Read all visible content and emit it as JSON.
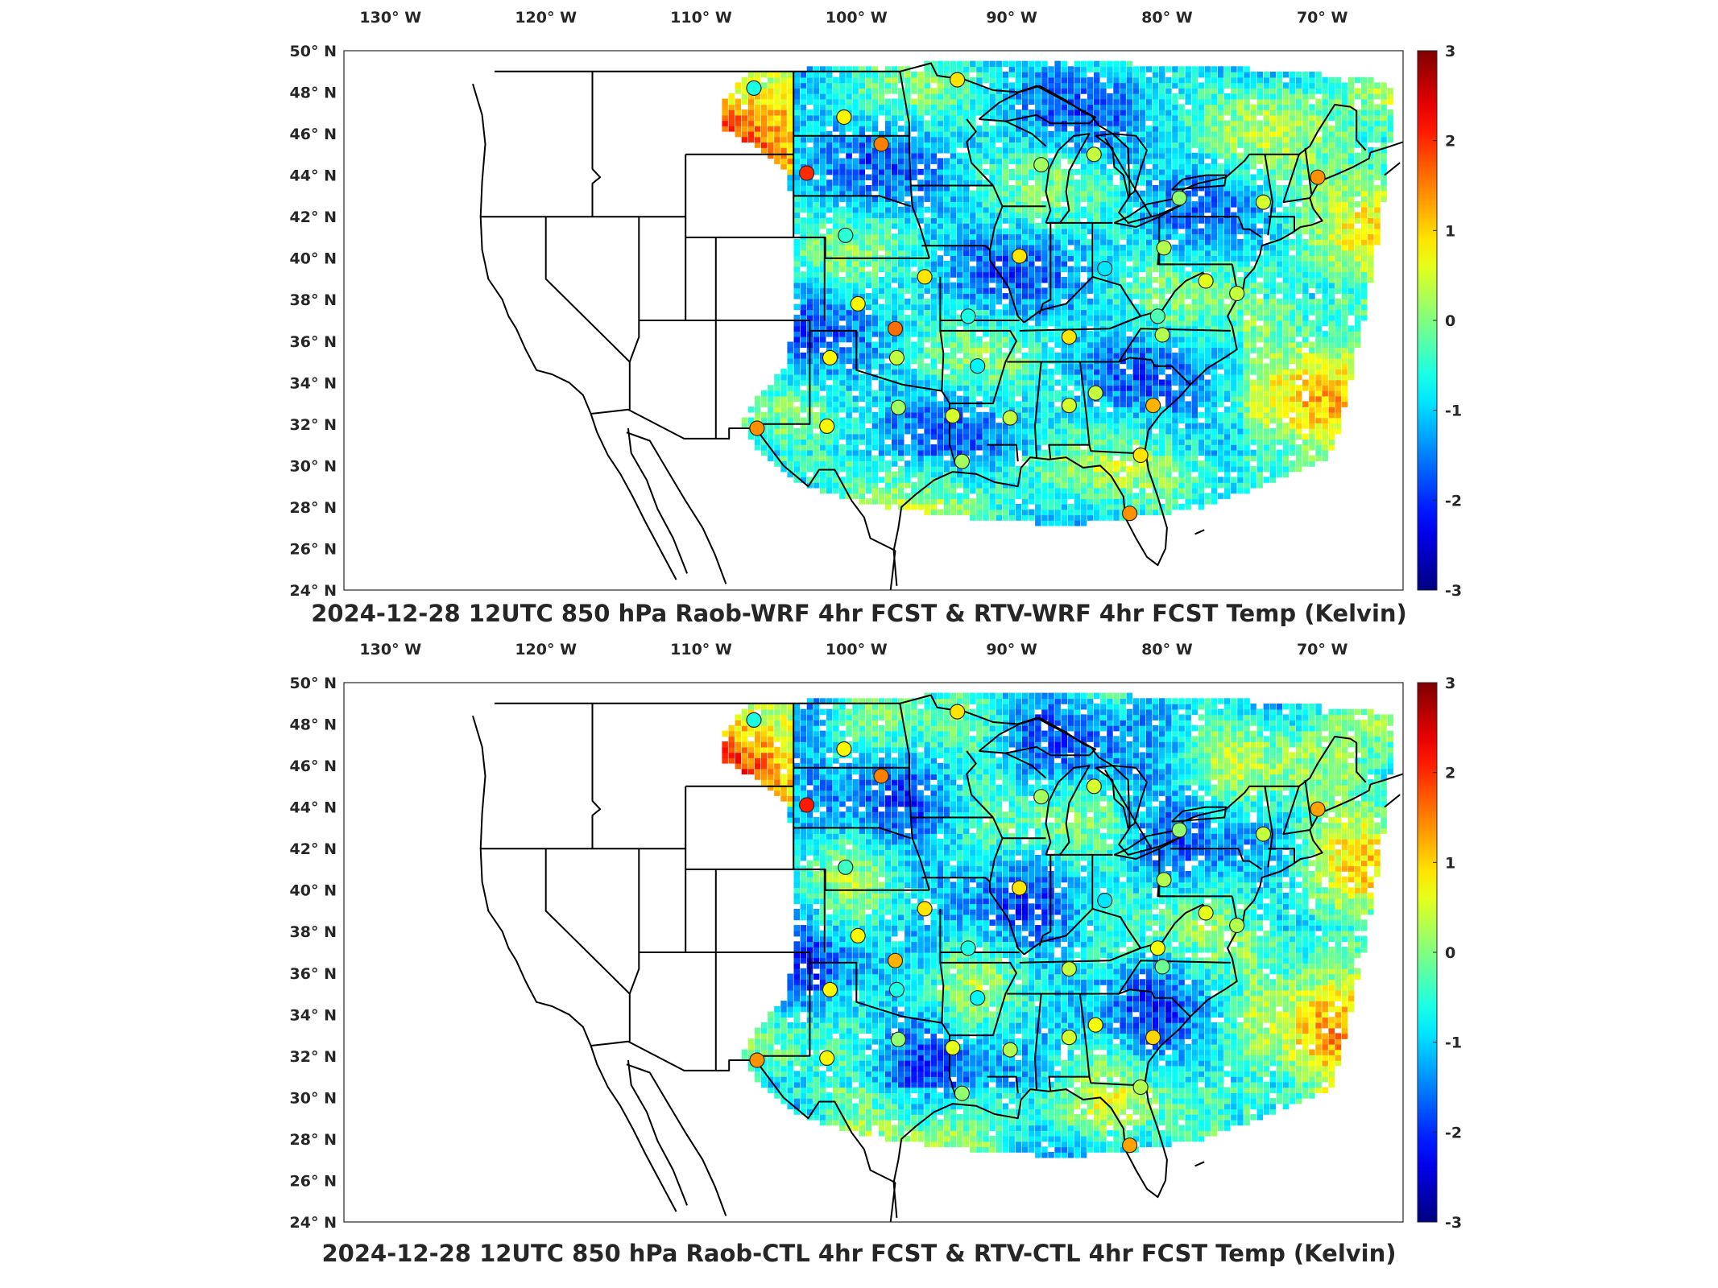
{
  "lon_labels": [
    "130° W",
    "120° W",
    "110° W",
    "100° W",
    "90° W",
    "80° W",
    "70° W"
  ],
  "lat_labels": [
    "50° N",
    "48° N",
    "46° N",
    "44° N",
    "42° N",
    "40° N",
    "38° N",
    "36° N",
    "34° N",
    "32° N",
    "30° N",
    "28° N",
    "26° N",
    "24° N"
  ],
  "colorbar": {
    "ticks": [
      "3",
      "2",
      "1",
      "0",
      "-1",
      "-2",
      "-3"
    ],
    "range": [
      -3,
      3
    ],
    "colormap": "jet"
  },
  "panels": [
    {
      "id": "top",
      "title": "2024-12-28 12UTC 850 hPa Raob-WRF 4hr FCST & RTV-WRF 4hr FCST Temp (Kelvin)"
    },
    {
      "id": "bottom",
      "title": "2024-12-28 12UTC 850 hPa Raob-CTL 4hr FCST & RTV-CTL 4hr FCST Temp (Kelvin)"
    }
  ],
  "stations": [
    {
      "lon": -106.6,
      "lat": 48.2,
      "top": -0.6,
      "bottom": -0.6
    },
    {
      "lon": -100.8,
      "lat": 46.8,
      "top": 0.8,
      "bottom": 0.8
    },
    {
      "lon": -93.5,
      "lat": 48.6,
      "top": 0.9,
      "bottom": 0.9
    },
    {
      "lon": -98.4,
      "lat": 45.5,
      "top": 1.5,
      "bottom": 1.5
    },
    {
      "lon": -103.2,
      "lat": 44.1,
      "top": 2.0,
      "bottom": 2.1
    },
    {
      "lon": -100.7,
      "lat": 41.1,
      "top": -0.5,
      "bottom": -0.4
    },
    {
      "lon": -95.6,
      "lat": 39.1,
      "top": 0.9,
      "bottom": 0.9
    },
    {
      "lon": -99.9,
      "lat": 37.8,
      "top": 0.8,
      "bottom": 0.8
    },
    {
      "lon": -97.5,
      "lat": 36.6,
      "top": 1.6,
      "bottom": 1.2
    },
    {
      "lon": -101.7,
      "lat": 35.2,
      "top": 0.8,
      "bottom": 0.8
    },
    {
      "lon": -97.4,
      "lat": 35.2,
      "top": 0.4,
      "bottom": -0.6
    },
    {
      "lon": -106.4,
      "lat": 31.8,
      "top": 1.4,
      "bottom": 1.4
    },
    {
      "lon": -101.9,
      "lat": 31.9,
      "top": 0.8,
      "bottom": 0.8
    },
    {
      "lon": -97.3,
      "lat": 32.8,
      "top": 0.2,
      "bottom": 0.1
    },
    {
      "lon": -92.8,
      "lat": 37.2,
      "top": -0.6,
      "bottom": -0.6
    },
    {
      "lon": -92.2,
      "lat": 34.8,
      "top": -0.8,
      "bottom": -0.8
    },
    {
      "lon": -93.8,
      "lat": 32.4,
      "top": 0.5,
      "bottom": 0.6
    },
    {
      "lon": -90.1,
      "lat": 32.3,
      "top": 0.4,
      "bottom": 0.3
    },
    {
      "lon": -93.2,
      "lat": 30.2,
      "top": 0.2,
      "bottom": 0.1
    },
    {
      "lon": -89.5,
      "lat": 40.1,
      "top": 0.9,
      "bottom": 0.9
    },
    {
      "lon": -86.3,
      "lat": 32.9,
      "top": 0.5,
      "bottom": 0.5
    },
    {
      "lon": -84.6,
      "lat": 33.5,
      "top": 0.4,
      "bottom": 0.7
    },
    {
      "lon": -86.3,
      "lat": 36.2,
      "top": 0.9,
      "bottom": 0.4
    },
    {
      "lon": -84.0,
      "lat": 39.5,
      "top": -0.9,
      "bottom": -0.9
    },
    {
      "lon": -80.2,
      "lat": 40.5,
      "top": 0.3,
      "bottom": 0.3
    },
    {
      "lon": -80.6,
      "lat": 37.2,
      "top": -0.3,
      "bottom": 0.7
    },
    {
      "lon": -80.3,
      "lat": 36.3,
      "top": 0.3,
      "bottom": -0.1
    },
    {
      "lon": -80.9,
      "lat": 32.9,
      "top": 1.2,
      "bottom": 1.0
    },
    {
      "lon": -81.7,
      "lat": 30.5,
      "top": 0.9,
      "bottom": 0.3
    },
    {
      "lon": -82.4,
      "lat": 27.7,
      "top": 1.4,
      "bottom": 1.3
    },
    {
      "lon": -88.1,
      "lat": 44.5,
      "top": 0.2,
      "bottom": 0.2
    },
    {
      "lon": -84.7,
      "lat": 45.0,
      "top": 0.4,
      "bottom": 0.5
    },
    {
      "lon": -79.2,
      "lat": 42.9,
      "top": 0.1,
      "bottom": 0.1
    },
    {
      "lon": -73.8,
      "lat": 42.7,
      "top": 0.5,
      "bottom": 0.4
    },
    {
      "lon": -70.3,
      "lat": 43.9,
      "top": 1.4,
      "bottom": 1.3
    },
    {
      "lon": -75.5,
      "lat": 38.3,
      "top": 0.4,
      "bottom": 0.3
    },
    {
      "lon": -77.5,
      "lat": 38.9,
      "top": 0.6,
      "bottom": 0.6
    }
  ]
}
